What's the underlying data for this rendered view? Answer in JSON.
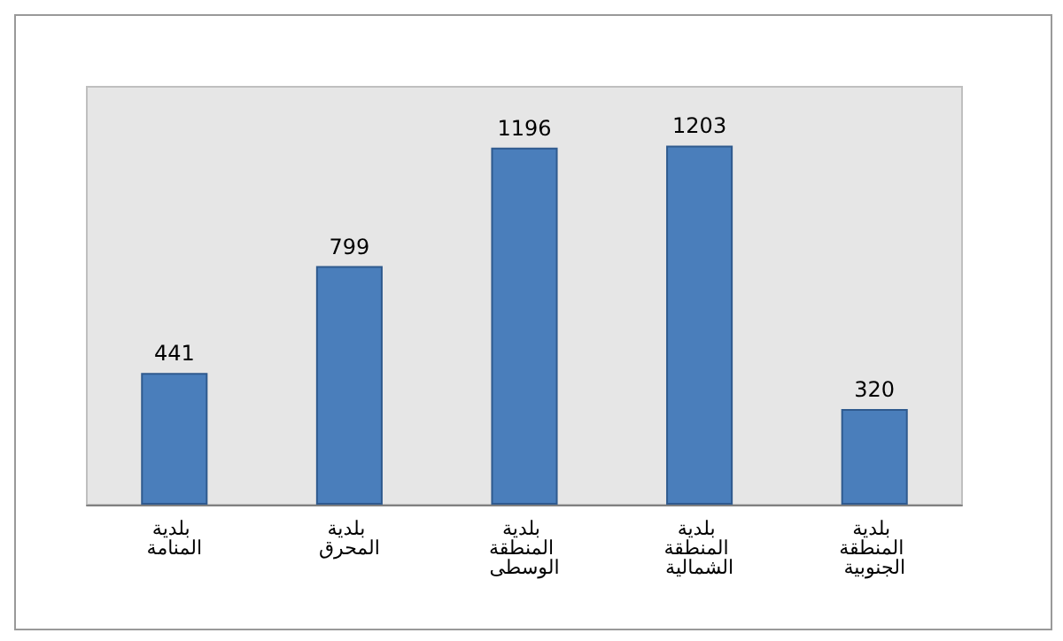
{
  "chart_data": {
    "type": "bar",
    "categories": [
      "بلدية المنامة",
      "بلدية المحرق",
      "بلدية المنطقة الوسطى",
      "بلدية المنطقة الشمالية",
      "بلدية المنطقة الجنوبية"
    ],
    "values": [
      441,
      799,
      1196,
      1203,
      320
    ],
    "color": "#4a7ebb",
    "data_labels": true
  }
}
